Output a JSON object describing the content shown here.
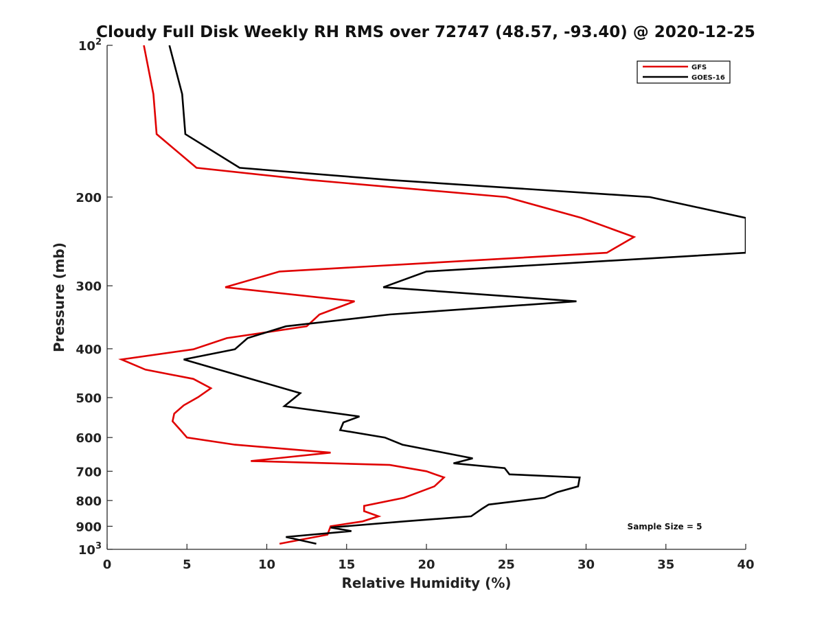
{
  "chart_data": {
    "type": "line",
    "title": "Cloudy Full Disk Weekly RH RMS over 72747 (48.57, -93.40) @ 2020-12-25",
    "xlabel": "Relative Humidity (%)",
    "ylabel": "Pressure (mb)",
    "xlim": [
      0,
      40
    ],
    "ylim": [
      100,
      1000
    ],
    "yscale": "log",
    "y_inverted": true,
    "x_ticks": [
      "0",
      "5",
      "10",
      "15",
      "20",
      "25",
      "30",
      "35",
      "40"
    ],
    "y_ticks": [
      {
        "value": 100,
        "label": "10",
        "sup": "2"
      },
      {
        "value": 200,
        "label": "200"
      },
      {
        "value": 300,
        "label": "300"
      },
      {
        "value": 400,
        "label": "400"
      },
      {
        "value": 500,
        "label": "500"
      },
      {
        "value": 600,
        "label": "600"
      },
      {
        "value": 700,
        "label": "700"
      },
      {
        "value": 800,
        "label": "800"
      },
      {
        "value": 900,
        "label": "900"
      },
      {
        "value": 1000,
        "label": "10",
        "sup": "3"
      }
    ],
    "legend": {
      "location": "top-right"
    },
    "annotation": "Sample Size = 5",
    "series": [
      {
        "name": "GFS",
        "color": "#e00000",
        "points": [
          [
            2.3,
            100
          ],
          [
            2.9,
            125
          ],
          [
            3.1,
            150
          ],
          [
            5.6,
            175
          ],
          [
            12.7,
            185
          ],
          [
            25.0,
            200
          ],
          [
            29.7,
            220
          ],
          [
            33.0,
            240
          ],
          [
            31.3,
            258
          ],
          [
            10.8,
            281
          ],
          [
            7.4,
            302
          ],
          [
            15.5,
            322
          ],
          [
            13.3,
            342
          ],
          [
            12.5,
            361
          ],
          [
            7.5,
            381
          ],
          [
            5.4,
            401
          ],
          [
            0.9,
            420
          ],
          [
            2.4,
            440
          ],
          [
            5.4,
            459
          ],
          [
            6.5,
            479
          ],
          [
            5.7,
            499
          ],
          [
            4.8,
            518
          ],
          [
            4.2,
            538
          ],
          [
            4.1,
            557
          ],
          [
            4.6,
            580
          ],
          [
            5.0,
            600
          ],
          [
            8.0,
            620
          ],
          [
            14.0,
            643
          ],
          [
            9.0,
            668
          ],
          [
            17.7,
            680
          ],
          [
            20.0,
            700
          ],
          [
            21.1,
            720
          ],
          [
            20.5,
            750
          ],
          [
            18.6,
            790
          ],
          [
            16.1,
            820
          ],
          [
            16.1,
            840
          ],
          [
            17.0,
            860
          ],
          [
            16.0,
            880
          ],
          [
            14.0,
            900
          ],
          [
            13.8,
            935
          ],
          [
            11.9,
            960
          ],
          [
            10.8,
            975
          ]
        ]
      },
      {
        "name": "GOES-16",
        "color": "#000000",
        "points": [
          [
            3.9,
            100
          ],
          [
            4.7,
            125
          ],
          [
            4.9,
            150
          ],
          [
            8.3,
            175
          ],
          [
            17.7,
            185
          ],
          [
            34.0,
            200
          ],
          [
            40.0,
            220
          ],
          [
            40.0,
            258
          ],
          [
            20.0,
            281
          ],
          [
            17.3,
            302
          ],
          [
            29.4,
            322
          ],
          [
            17.7,
            342
          ],
          [
            11.2,
            361
          ],
          [
            8.8,
            381
          ],
          [
            8.0,
            401
          ],
          [
            4.8,
            420
          ],
          [
            12.1,
            490
          ],
          [
            11.7,
            502
          ],
          [
            11.1,
            520
          ],
          [
            15.8,
            545
          ],
          [
            14.8,
            560
          ],
          [
            14.6,
            580
          ],
          [
            17.4,
            600
          ],
          [
            18.5,
            620
          ],
          [
            22.9,
            660
          ],
          [
            21.7,
            675
          ],
          [
            24.9,
            690
          ],
          [
            25.2,
            710
          ],
          [
            29.6,
            720
          ],
          [
            29.5,
            750
          ],
          [
            28.2,
            770
          ],
          [
            27.4,
            790
          ],
          [
            23.9,
            815
          ],
          [
            23.5,
            830
          ],
          [
            22.8,
            860
          ],
          [
            18.6,
            880
          ],
          [
            14.0,
            905
          ],
          [
            15.3,
            920
          ],
          [
            11.2,
            945
          ],
          [
            13.1,
            975
          ]
        ]
      }
    ]
  }
}
